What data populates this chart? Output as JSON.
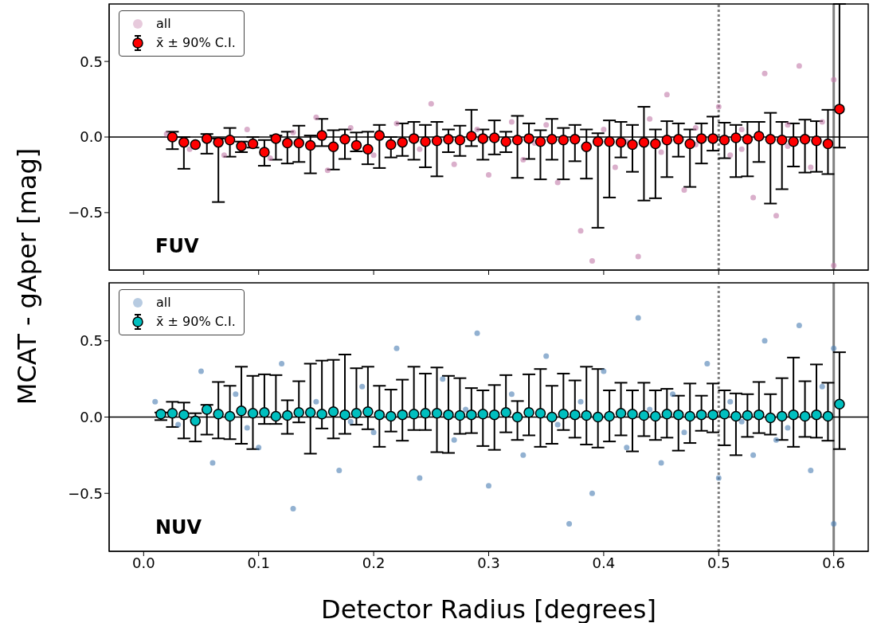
{
  "chart_data": [
    {
      "type": "scatter",
      "ylabel": "MCAT - gAper [mag]",
      "annotations": [
        "FUV"
      ],
      "xlim": [
        -0.03,
        0.63
      ],
      "ylim": [
        -0.88,
        0.88
      ],
      "xticks": [
        {
          "value": 0,
          "label": null
        },
        {
          "value": 0.1,
          "label": null
        },
        {
          "value": 0.2,
          "label": null
        },
        {
          "value": 0.3,
          "label": null
        },
        {
          "value": 0.4,
          "label": null
        },
        {
          "value": 0.5,
          "label": null
        },
        {
          "value": 0.6,
          "label": null
        }
      ],
      "yticks": [
        {
          "value": -0.5,
          "label": "−0.5"
        },
        {
          "value": 0,
          "label": "0.0"
        },
        {
          "value": 0.5,
          "label": "0.5"
        }
      ],
      "tick_labels": "y",
      "grid": false,
      "legend": "top left",
      "marker": "circle",
      "ref_lines": [
        {
          "axis": "x",
          "value": 0.5,
          "color": "#808080",
          "line_style": "dotted"
        },
        {
          "axis": "x",
          "value": 0.6,
          "color": "#808080",
          "line_style": "solid"
        },
        {
          "axis": "y",
          "value": 0,
          "color": "#000000",
          "line_style": "solid"
        }
      ],
      "series": [
        {
          "name": "all",
          "color": "#c27aa8",
          "x": [
            0.02,
            0.04,
            0.07,
            0.09,
            0.11,
            0.13,
            0.15,
            0.16,
            0.18,
            0.2,
            0.22,
            0.24,
            0.25,
            0.27,
            0.29,
            0.3,
            0.32,
            0.33,
            0.35,
            0.36,
            0.38,
            0.39,
            0.4,
            0.41,
            0.43,
            0.44,
            0.45,
            0.455,
            0.47,
            0.48,
            0.5,
            0.51,
            0.52,
            0.53,
            0.54,
            0.55,
            0.56,
            0.57,
            0.58,
            0.59,
            0.6,
            0.6,
            0.48,
            0.52,
            0.56,
            0.42,
            0.34
          ],
          "values": [
            0.02,
            -0.08,
            -0.12,
            0.05,
            -0.14,
            0.03,
            0.13,
            -0.22,
            0.06,
            -0.12,
            0.09,
            -0.08,
            0.22,
            -0.18,
            0.05,
            -0.25,
            0.1,
            -0.15,
            0.08,
            -0.3,
            -0.62,
            -0.82,
            0.05,
            -0.2,
            -0.79,
            0.12,
            -0.1,
            0.28,
            -0.35,
            0.06,
            0.2,
            -0.12,
            0.05,
            -0.4,
            0.42,
            -0.52,
            0.08,
            0.47,
            -0.2,
            0.1,
            0.38,
            -0.85,
            -0.05,
            -0.08,
            -0.06,
            -0.03,
            -0.04
          ]
        },
        {
          "name": "x̄ ± 90% C.I.",
          "color": "#ff0000",
          "x": [
            0.025,
            0.035,
            0.045,
            0.055,
            0.065,
            0.075,
            0.085,
            0.095,
            0.105,
            0.115,
            0.125,
            0.135,
            0.145,
            0.155,
            0.165,
            0.175,
            0.185,
            0.195,
            0.205,
            0.215,
            0.225,
            0.235,
            0.245,
            0.255,
            0.265,
            0.275,
            0.285,
            0.295,
            0.305,
            0.315,
            0.325,
            0.335,
            0.345,
            0.355,
            0.365,
            0.375,
            0.385,
            0.395,
            0.405,
            0.415,
            0.425,
            0.435,
            0.445,
            0.455,
            0.465,
            0.475,
            0.485,
            0.495,
            0.505,
            0.515,
            0.525,
            0.535,
            0.545,
            0.555,
            0.565,
            0.575,
            0.585,
            0.595,
            0.605
          ],
          "values": [
            0.0,
            -0.035,
            -0.05,
            -0.01,
            -0.035,
            -0.02,
            -0.06,
            -0.045,
            -0.1,
            -0.01,
            -0.04,
            -0.04,
            -0.055,
            0.01,
            -0.065,
            -0.015,
            -0.055,
            -0.08,
            0.01,
            -0.05,
            -0.035,
            -0.01,
            -0.03,
            -0.025,
            -0.015,
            -0.02,
            0.005,
            -0.01,
            -0.005,
            -0.03,
            -0.02,
            -0.01,
            -0.03,
            -0.015,
            -0.02,
            -0.015,
            -0.065,
            -0.03,
            -0.03,
            -0.035,
            -0.05,
            -0.035,
            -0.045,
            -0.02,
            -0.015,
            -0.045,
            -0.01,
            -0.01,
            -0.02,
            -0.005,
            -0.015,
            0.005,
            -0.015,
            -0.02,
            -0.03,
            -0.015,
            -0.025,
            -0.045,
            0.185
          ],
          "errors": [
            [
              -0.08,
              0.035
            ],
            [
              -0.21,
              0.0
            ],
            null,
            [
              -0.11,
              0.02
            ],
            [
              -0.43,
              -0.01
            ],
            [
              -0.13,
              0.06
            ],
            [
              -0.1,
              -0.03
            ],
            [
              -0.07,
              0.0
            ],
            [
              -0.19,
              -0.02
            ],
            [
              -0.15,
              0.01
            ],
            [
              -0.175,
              0.035
            ],
            [
              -0.165,
              0.075
            ],
            [
              -0.24,
              0.01
            ],
            [
              -0.06,
              0.12
            ],
            [
              -0.215,
              0.045
            ],
            [
              -0.145,
              0.05
            ],
            [
              -0.095,
              0.03
            ],
            [
              -0.18,
              0.035
            ],
            [
              -0.205,
              0.08
            ],
            [
              -0.135,
              0.0
            ],
            [
              -0.125,
              0.09
            ],
            [
              -0.15,
              0.1
            ],
            [
              -0.2,
              0.08
            ],
            [
              -0.26,
              0.1
            ],
            [
              -0.1,
              0.05
            ],
            [
              -0.125,
              0.075
            ],
            [
              -0.06,
              0.18
            ],
            [
              -0.15,
              0.05
            ],
            [
              -0.115,
              0.11
            ],
            [
              -0.1,
              0.035
            ],
            [
              -0.27,
              0.14
            ],
            [
              -0.145,
              0.09
            ],
            [
              -0.28,
              0.045
            ],
            [
              -0.15,
              0.12
            ],
            [
              -0.28,
              0.06
            ],
            [
              -0.16,
              0.08
            ],
            [
              -0.275,
              0.05
            ],
            [
              -0.6,
              0.025
            ],
            [
              -0.4,
              0.11
            ],
            [
              -0.135,
              0.1
            ],
            [
              -0.23,
              0.08
            ],
            [
              -0.42,
              0.2
            ],
            [
              -0.405,
              0.05
            ],
            [
              -0.265,
              0.105
            ],
            [
              -0.13,
              0.09
            ],
            [
              -0.33,
              0.05
            ],
            [
              -0.175,
              0.09
            ],
            [
              -0.09,
              0.135
            ],
            [
              -0.14,
              0.095
            ],
            [
              -0.265,
              0.08
            ],
            [
              -0.26,
              0.1
            ],
            [
              -0.165,
              0.1
            ],
            [
              -0.44,
              0.16
            ],
            [
              -0.345,
              0.1
            ],
            [
              -0.195,
              0.09
            ],
            [
              -0.235,
              0.115
            ],
            [
              -0.23,
              0.105
            ],
            [
              -0.245,
              0.18
            ],
            [
              -0.07,
              0.88
            ]
          ]
        }
      ]
    },
    {
      "type": "scatter",
      "xlabel": "Detector Radius [degrees]",
      "annotations": [
        "NUV"
      ],
      "xlim": [
        -0.03,
        0.63
      ],
      "ylim": [
        -0.88,
        0.88
      ],
      "xticks": [
        {
          "value": 0,
          "label": "0.0"
        },
        {
          "value": 0.1,
          "label": "0.1"
        },
        {
          "value": 0.2,
          "label": "0.2"
        },
        {
          "value": 0.3,
          "label": "0.3"
        },
        {
          "value": 0.4,
          "label": "0.4"
        },
        {
          "value": 0.5,
          "label": "0.5"
        },
        {
          "value": 0.6,
          "label": "0.6"
        }
      ],
      "yticks": [
        {
          "value": -0.5,
          "label": "−0.5"
        },
        {
          "value": 0,
          "label": "0.0"
        },
        {
          "value": 0.5,
          "label": "0.5"
        }
      ],
      "grid": false,
      "legend": "top left",
      "marker": "circle",
      "ref_lines": [
        {
          "axis": "x",
          "value": 0.5,
          "color": "#808080",
          "line_style": "dotted"
        },
        {
          "axis": "x",
          "value": 0.6,
          "color": "#808080",
          "line_style": "solid"
        },
        {
          "axis": "y",
          "value": 0,
          "color": "#000000",
          "line_style": "solid"
        }
      ],
      "series": [
        {
          "name": "all",
          "color": "#4a7db3",
          "x": [
            0.01,
            0.03,
            0.05,
            0.06,
            0.08,
            0.1,
            0.12,
            0.13,
            0.15,
            0.17,
            0.19,
            0.2,
            0.22,
            0.24,
            0.26,
            0.27,
            0.29,
            0.3,
            0.32,
            0.33,
            0.35,
            0.37,
            0.38,
            0.39,
            0.4,
            0.42,
            0.43,
            0.45,
            0.46,
            0.47,
            0.49,
            0.5,
            0.51,
            0.53,
            0.54,
            0.55,
            0.57,
            0.58,
            0.59,
            0.6,
            0.6,
            0.28,
            0.36,
            0.44,
            0.52,
            0.56,
            0.18,
            0.09
          ],
          "values": [
            0.1,
            -0.05,
            0.3,
            -0.3,
            0.15,
            -0.2,
            0.35,
            -0.6,
            0.1,
            -0.35,
            0.2,
            -0.1,
            0.45,
            -0.4,
            0.25,
            -0.15,
            0.55,
            -0.45,
            0.15,
            -0.25,
            0.4,
            -0.7,
            0.1,
            -0.5,
            0.3,
            -0.2,
            0.65,
            -0.3,
            0.15,
            -0.1,
            0.35,
            -0.4,
            0.1,
            -0.25,
            0.5,
            -0.15,
            0.6,
            -0.35,
            0.2,
            -0.7,
            0.45,
            0.05,
            -0.05,
            0.05,
            -0.03,
            -0.07,
            -0.03,
            -0.07
          ]
        },
        {
          "name": "x̄ ± 90% C.I.",
          "color": "#00bfbf",
          "x": [
            0.015,
            0.025,
            0.035,
            0.045,
            0.055,
            0.065,
            0.075,
            0.085,
            0.095,
            0.105,
            0.115,
            0.125,
            0.135,
            0.145,
            0.155,
            0.165,
            0.175,
            0.185,
            0.195,
            0.205,
            0.215,
            0.225,
            0.235,
            0.245,
            0.255,
            0.265,
            0.275,
            0.285,
            0.295,
            0.305,
            0.315,
            0.325,
            0.335,
            0.345,
            0.355,
            0.365,
            0.375,
            0.385,
            0.395,
            0.405,
            0.415,
            0.425,
            0.435,
            0.445,
            0.455,
            0.465,
            0.475,
            0.485,
            0.495,
            0.505,
            0.515,
            0.525,
            0.535,
            0.545,
            0.555,
            0.565,
            0.575,
            0.585,
            0.595,
            0.605
          ],
          "values": [
            0.02,
            0.025,
            0.015,
            -0.025,
            0.05,
            0.02,
            0.005,
            0.04,
            0.025,
            0.03,
            0.005,
            0.01,
            0.03,
            0.03,
            0.02,
            0.035,
            0.015,
            0.025,
            0.035,
            0.015,
            0.005,
            0.015,
            0.02,
            0.025,
            0.025,
            0.015,
            0.01,
            0.015,
            0.02,
            0.015,
            0.03,
            0.0,
            0.03,
            0.025,
            0.0,
            0.02,
            0.015,
            0.01,
            0.0,
            0.005,
            0.025,
            0.02,
            0.01,
            0.005,
            0.02,
            0.015,
            0.005,
            0.015,
            0.015,
            0.02,
            0.005,
            0.01,
            0.015,
            -0.005,
            0.005,
            0.015,
            0.005,
            0.015,
            0.005,
            0.085
          ],
          "errors": [
            [
              -0.02,
              0.03
            ],
            [
              -0.065,
              0.1
            ],
            [
              -0.14,
              0.095
            ],
            [
              -0.16,
              0.025
            ],
            [
              -0.115,
              0.08
            ],
            [
              -0.14,
              0.23
            ],
            [
              -0.145,
              0.205
            ],
            [
              -0.175,
              0.33
            ],
            [
              -0.21,
              0.27
            ],
            [
              -0.045,
              0.28
            ],
            [
              -0.045,
              0.275
            ],
            [
              -0.11,
              0.11
            ],
            [
              -0.035,
              0.235
            ],
            [
              -0.24,
              0.35
            ],
            [
              -0.075,
              0.37
            ],
            [
              -0.14,
              0.375
            ],
            [
              -0.11,
              0.41
            ],
            [
              -0.05,
              0.32
            ],
            [
              -0.08,
              0.33
            ],
            [
              -0.195,
              0.205
            ],
            [
              -0.095,
              0.18
            ],
            [
              -0.155,
              0.245
            ],
            [
              -0.085,
              0.33
            ],
            [
              -0.085,
              0.285
            ],
            [
              -0.23,
              0.325
            ],
            [
              -0.235,
              0.27
            ],
            [
              -0.11,
              0.255
            ],
            [
              -0.105,
              0.19
            ],
            [
              -0.19,
              0.175
            ],
            [
              -0.215,
              0.21
            ],
            [
              -0.1,
              0.275
            ],
            [
              -0.15,
              0.105
            ],
            [
              -0.12,
              0.28
            ],
            [
              -0.195,
              0.315
            ],
            [
              -0.175,
              0.205
            ],
            [
              -0.085,
              0.285
            ],
            [
              -0.135,
              0.24
            ],
            [
              -0.18,
              0.33
            ],
            [
              -0.2,
              0.315
            ],
            [
              -0.16,
              0.175
            ],
            [
              -0.12,
              0.225
            ],
            [
              -0.225,
              0.175
            ],
            [
              -0.125,
              0.225
            ],
            [
              -0.15,
              0.175
            ],
            [
              -0.135,
              0.185
            ],
            [
              -0.22,
              0.14
            ],
            [
              -0.17,
              0.22
            ],
            [
              -0.09,
              0.14
            ],
            [
              -0.1,
              0.22
            ],
            [
              -0.185,
              0.175
            ],
            [
              -0.25,
              0.155
            ],
            [
              -0.13,
              0.15
            ],
            [
              -0.105,
              0.23
            ],
            [
              -0.115,
              0.15
            ],
            [
              -0.15,
              0.255
            ],
            [
              -0.195,
              0.39
            ],
            [
              -0.13,
              0.235
            ],
            [
              -0.135,
              0.345
            ],
            [
              -0.155,
              0.225
            ],
            [
              -0.21,
              0.425
            ]
          ]
        }
      ]
    }
  ]
}
